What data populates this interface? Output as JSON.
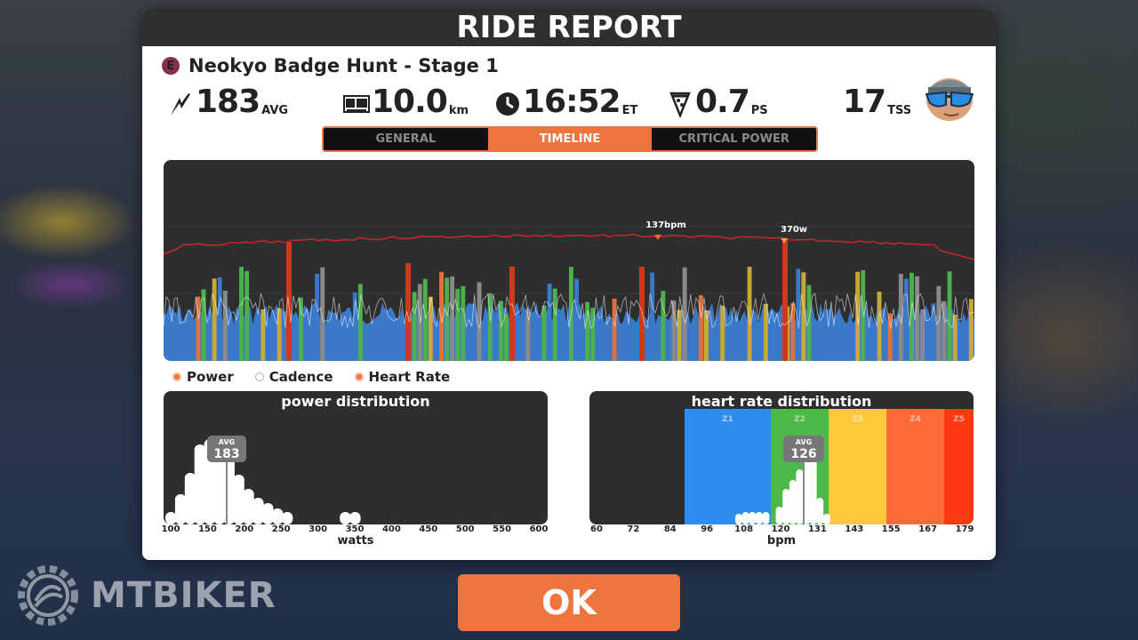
{
  "header": {
    "title": "RIDE REPORT"
  },
  "ride": {
    "badge": "E",
    "name": "Neokyo Badge Hunt - Stage 1"
  },
  "stats": {
    "power": {
      "value": "183",
      "unit": "AVG",
      "icon": "lightning-icon"
    },
    "distance": {
      "value": "10.0",
      "unit": "km",
      "icon": "odometer-icon"
    },
    "time": {
      "value": "16:52",
      "unit": "ET",
      "icon": "clock-icon"
    },
    "pizza": {
      "value": "0.7",
      "unit": "PS",
      "icon": "pizza-icon"
    },
    "tss": {
      "value": "17",
      "unit": "TSS"
    }
  },
  "tabs": [
    {
      "label": "GENERAL",
      "active": false
    },
    {
      "label": "TIMELINE",
      "active": true
    },
    {
      "label": "CRITICAL POWER",
      "active": false
    }
  ],
  "timeline": {
    "hr_peak_label": "137bpm",
    "power_peak_label": "370w",
    "colors": {
      "z1": "#3a78c9",
      "z2": "#4caf50",
      "z3": "#c9a83a",
      "z4": "#e0703a",
      "z5": "#d0381c",
      "gray": "#8a8a8a",
      "hr_line": "#c62828"
    }
  },
  "legend": [
    {
      "label": "Power",
      "on": true
    },
    {
      "label": "Cadence",
      "on": false
    },
    {
      "label": "Heart Rate",
      "on": true
    }
  ],
  "power_distribution": {
    "title": "power distribution",
    "avg_label": "AVG",
    "avg_value": "183",
    "ticks": [
      "100",
      "150",
      "200",
      "250",
      "300",
      "350",
      "400",
      "450",
      "500",
      "550",
      "600"
    ],
    "xlabel": "watts"
  },
  "hr_distribution": {
    "title": "heart rate distribution",
    "avg_label": "AVG",
    "avg_value": "126",
    "ticks": [
      "60",
      "72",
      "84",
      "96",
      "108",
      "120",
      "131",
      "143",
      "155",
      "167",
      "179"
    ],
    "xlabel": "bpm",
    "zones": [
      {
        "label": "Z1",
        "color": "#2f8cf0"
      },
      {
        "label": "Z2",
        "color": "#4cb848"
      },
      {
        "label": "Z3",
        "color": "#ffc83d"
      },
      {
        "label": "Z4",
        "color": "#ff6a3a"
      },
      {
        "label": "Z5",
        "color": "#ff3a12"
      }
    ]
  },
  "ok_button": {
    "label": "OK"
  },
  "watermark": {
    "text": "MTBIKER"
  }
}
